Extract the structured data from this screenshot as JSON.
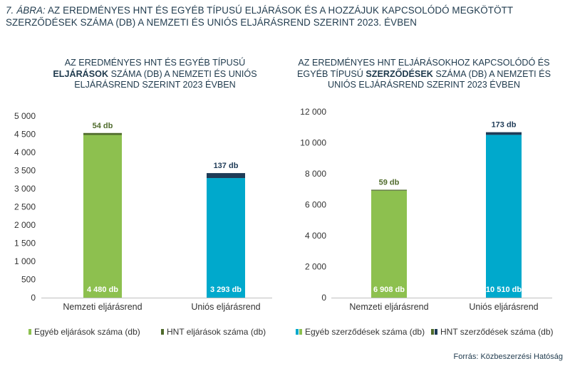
{
  "figure": {
    "label": "7. ábra:",
    "title": "Az eredményes HNT és egyéb típusú eljárások és a hozzájuk kapcsolódó megkötött szerződések száma (db) a nemzeti és uniós eljárásrend szerint 2023. évben"
  },
  "source": "Forrás: Közbeszerzési Hatóság",
  "colors": {
    "green": "#8dc04f",
    "dark_green": "#4f6b2c",
    "cyan": "#00a9cc",
    "navy": "#1e3b57",
    "axis": "#bfbfbf"
  },
  "chart_data": [
    {
      "type": "bar",
      "stacked": true,
      "title_pre": "Az eredményes HNT és egyéb típusú",
      "title_bold": "eljárások",
      "title_post": "száma (db) a nemzeti és uniós eljárásrend szerint 2023 évben",
      "categories": [
        "Nemzeti eljárásrend",
        "Uniós eljárásrend"
      ],
      "series": [
        {
          "name": "Egyéb eljárások száma (db)",
          "values": [
            4480,
            3293
          ],
          "labels": [
            "4 480 db",
            "3 293 db"
          ]
        },
        {
          "name": "HNT eljárások száma (db)",
          "values": [
            54,
            137
          ],
          "labels": [
            "54 db",
            "137 db"
          ]
        }
      ],
      "ylim": [
        0,
        5000
      ],
      "yticks": [
        0,
        500,
        1000,
        1500,
        2000,
        2500,
        3000,
        3500,
        4000,
        4500,
        5000
      ],
      "ytick_labels": [
        "0",
        "500",
        "1 000",
        "1 500",
        "2 000",
        "2 500",
        "3 000",
        "3 500",
        "4 000",
        "4 500",
        "5 000"
      ],
      "legend_position": "bottom",
      "bar_colors": [
        [
          "#8dc04f",
          "#00a9cc"
        ],
        [
          "#4f6b2c",
          "#1e3b57"
        ]
      ],
      "top_label_colors": [
        "#4f6b2c",
        "#1e3b57"
      ],
      "legend_swatches": [
        [
          "#8dc04f"
        ],
        [
          "#4f6b2c"
        ]
      ],
      "grid": false
    },
    {
      "type": "bar",
      "stacked": true,
      "title_pre": "Az eredményes HNT eljárásokhoz kapcsolódó és egyéb típusú",
      "title_bold": "szerződések",
      "title_post": "száma (db) a nemzeti és uniós eljárásrend szerint 2023 évben",
      "categories": [
        "Nemzeti eljárásrend",
        "Uniós eljárásrend"
      ],
      "series": [
        {
          "name": "Egyéb szerződések száma (db)",
          "values": [
            6908,
            10510
          ],
          "labels": [
            "6 908 db",
            "10 510 db"
          ]
        },
        {
          "name": "HNT szerződések száma (db)",
          "values": [
            59,
            173
          ],
          "labels": [
            "59 db",
            "173 db"
          ]
        }
      ],
      "ylim": [
        0,
        12000
      ],
      "yticks": [
        0,
        2000,
        4000,
        6000,
        8000,
        10000,
        12000
      ],
      "ytick_labels": [
        "0",
        "2 000",
        "4 000",
        "6 000",
        "8 000",
        "10 000",
        "12 000"
      ],
      "legend_position": "bottom",
      "bar_colors": [
        [
          "#8dc04f",
          "#00a9cc"
        ],
        [
          "#4f6b2c",
          "#1e3b57"
        ]
      ],
      "top_label_colors": [
        "#4f6b2c",
        "#1e3b57"
      ],
      "legend_swatches": [
        [
          "#00a9cc",
          "#8dc04f"
        ],
        [
          "#4f6b2c",
          "#1e3b57"
        ]
      ],
      "grid": false
    }
  ]
}
